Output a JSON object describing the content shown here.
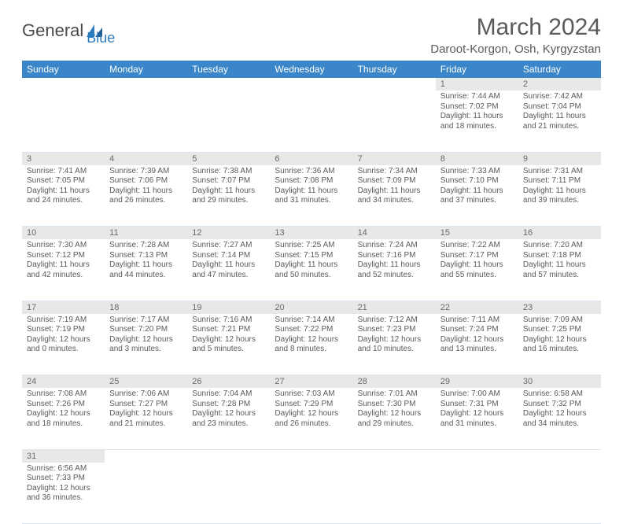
{
  "logo": {
    "text1": "General",
    "text2": "Blue"
  },
  "title": "March 2024",
  "location": "Daroot-Korgon, Osh, Kyrgyzstan",
  "headers": [
    "Sunday",
    "Monday",
    "Tuesday",
    "Wednesday",
    "Thursday",
    "Friday",
    "Saturday"
  ],
  "colors": {
    "header_bg": "#3a86c8",
    "header_fg": "#ffffff",
    "daynum_bg": "#e8e8e8",
    "text": "#5a5a5a",
    "brand": "#2b7bbf"
  },
  "weeks": [
    [
      null,
      null,
      null,
      null,
      null,
      {
        "n": "1",
        "sr": "7:44 AM",
        "ss": "7:02 PM",
        "dl": "11 hours and 18 minutes."
      },
      {
        "n": "2",
        "sr": "7:42 AM",
        "ss": "7:04 PM",
        "dl": "11 hours and 21 minutes."
      }
    ],
    [
      {
        "n": "3",
        "sr": "7:41 AM",
        "ss": "7:05 PM",
        "dl": "11 hours and 24 minutes."
      },
      {
        "n": "4",
        "sr": "7:39 AM",
        "ss": "7:06 PM",
        "dl": "11 hours and 26 minutes."
      },
      {
        "n": "5",
        "sr": "7:38 AM",
        "ss": "7:07 PM",
        "dl": "11 hours and 29 minutes."
      },
      {
        "n": "6",
        "sr": "7:36 AM",
        "ss": "7:08 PM",
        "dl": "11 hours and 31 minutes."
      },
      {
        "n": "7",
        "sr": "7:34 AM",
        "ss": "7:09 PM",
        "dl": "11 hours and 34 minutes."
      },
      {
        "n": "8",
        "sr": "7:33 AM",
        "ss": "7:10 PM",
        "dl": "11 hours and 37 minutes."
      },
      {
        "n": "9",
        "sr": "7:31 AM",
        "ss": "7:11 PM",
        "dl": "11 hours and 39 minutes."
      }
    ],
    [
      {
        "n": "10",
        "sr": "7:30 AM",
        "ss": "7:12 PM",
        "dl": "11 hours and 42 minutes."
      },
      {
        "n": "11",
        "sr": "7:28 AM",
        "ss": "7:13 PM",
        "dl": "11 hours and 44 minutes."
      },
      {
        "n": "12",
        "sr": "7:27 AM",
        "ss": "7:14 PM",
        "dl": "11 hours and 47 minutes."
      },
      {
        "n": "13",
        "sr": "7:25 AM",
        "ss": "7:15 PM",
        "dl": "11 hours and 50 minutes."
      },
      {
        "n": "14",
        "sr": "7:24 AM",
        "ss": "7:16 PM",
        "dl": "11 hours and 52 minutes."
      },
      {
        "n": "15",
        "sr": "7:22 AM",
        "ss": "7:17 PM",
        "dl": "11 hours and 55 minutes."
      },
      {
        "n": "16",
        "sr": "7:20 AM",
        "ss": "7:18 PM",
        "dl": "11 hours and 57 minutes."
      }
    ],
    [
      {
        "n": "17",
        "sr": "7:19 AM",
        "ss": "7:19 PM",
        "dl": "12 hours and 0 minutes."
      },
      {
        "n": "18",
        "sr": "7:17 AM",
        "ss": "7:20 PM",
        "dl": "12 hours and 3 minutes."
      },
      {
        "n": "19",
        "sr": "7:16 AM",
        "ss": "7:21 PM",
        "dl": "12 hours and 5 minutes."
      },
      {
        "n": "20",
        "sr": "7:14 AM",
        "ss": "7:22 PM",
        "dl": "12 hours and 8 minutes."
      },
      {
        "n": "21",
        "sr": "7:12 AM",
        "ss": "7:23 PM",
        "dl": "12 hours and 10 minutes."
      },
      {
        "n": "22",
        "sr": "7:11 AM",
        "ss": "7:24 PM",
        "dl": "12 hours and 13 minutes."
      },
      {
        "n": "23",
        "sr": "7:09 AM",
        "ss": "7:25 PM",
        "dl": "12 hours and 16 minutes."
      }
    ],
    [
      {
        "n": "24",
        "sr": "7:08 AM",
        "ss": "7:26 PM",
        "dl": "12 hours and 18 minutes."
      },
      {
        "n": "25",
        "sr": "7:06 AM",
        "ss": "7:27 PM",
        "dl": "12 hours and 21 minutes."
      },
      {
        "n": "26",
        "sr": "7:04 AM",
        "ss": "7:28 PM",
        "dl": "12 hours and 23 minutes."
      },
      {
        "n": "27",
        "sr": "7:03 AM",
        "ss": "7:29 PM",
        "dl": "12 hours and 26 minutes."
      },
      {
        "n": "28",
        "sr": "7:01 AM",
        "ss": "7:30 PM",
        "dl": "12 hours and 29 minutes."
      },
      {
        "n": "29",
        "sr": "7:00 AM",
        "ss": "7:31 PM",
        "dl": "12 hours and 31 minutes."
      },
      {
        "n": "30",
        "sr": "6:58 AM",
        "ss": "7:32 PM",
        "dl": "12 hours and 34 minutes."
      }
    ],
    [
      {
        "n": "31",
        "sr": "6:56 AM",
        "ss": "7:33 PM",
        "dl": "12 hours and 36 minutes."
      },
      null,
      null,
      null,
      null,
      null,
      null
    ]
  ],
  "labels": {
    "sunrise": "Sunrise: ",
    "sunset": "Sunset: ",
    "daylight": "Daylight: "
  }
}
